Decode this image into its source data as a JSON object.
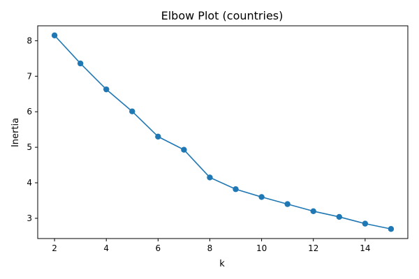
{
  "chart_data": {
    "type": "line",
    "title": "Elbow Plot (countries)",
    "xlabel": "k",
    "ylabel": "Inertia",
    "xlim": [
      1.35,
      15.65
    ],
    "ylim": [
      2.43,
      8.42
    ],
    "xticks": [
      2,
      4,
      6,
      8,
      10,
      12,
      14
    ],
    "yticks": [
      3,
      4,
      5,
      6,
      7,
      8
    ],
    "grid": false,
    "series": [
      {
        "color": "#1f77b4",
        "marker": "circle",
        "x": [
          2,
          3,
          4,
          5,
          6,
          7,
          8,
          9,
          10,
          11,
          12,
          13,
          14,
          15
        ],
        "y": [
          8.15,
          7.36,
          6.63,
          6.01,
          5.3,
          4.93,
          4.15,
          3.82,
          3.6,
          3.4,
          3.2,
          3.04,
          2.85,
          2.7
        ]
      }
    ]
  }
}
